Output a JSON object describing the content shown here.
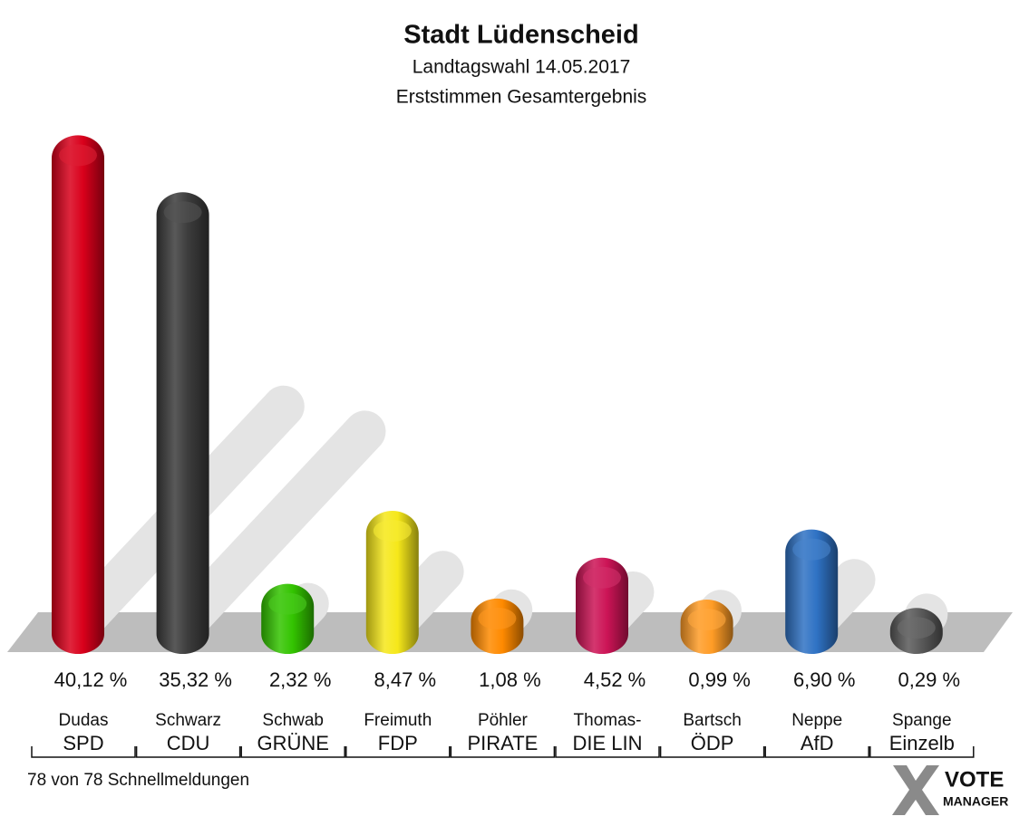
{
  "chart_data": {
    "type": "bar",
    "title": "Stadt Lüdenscheid",
    "subtitle": [
      "Landtagswahl 14.05.2017",
      "Erststimmen Gesamtergebnis"
    ],
    "candidates": [
      "Dudas",
      "Schwarz",
      "Schwab",
      "Freimuth",
      "Pöhler",
      "Thomas-",
      "Bartsch",
      "Neppe",
      "Spange"
    ],
    "categories": [
      "SPD",
      "CDU",
      "GRÜNE",
      "FDP",
      "PIRATE",
      "DIE LIN",
      "ÖDP",
      "AfD",
      "Einzelb"
    ],
    "values": [
      40.12,
      35.32,
      2.32,
      8.47,
      1.08,
      4.52,
      0.99,
      6.9,
      0.29
    ],
    "value_labels": [
      "40,12 %",
      "35,32 %",
      "2,32 %",
      "8,47 %",
      "1,08 %",
      "4,52 %",
      "0,99 %",
      "6,90 %",
      "0,29 %"
    ],
    "colors": [
      "#d9001b",
      "#3c3c3c",
      "#33c400",
      "#f6e81a",
      "#ff8a00",
      "#cc1456",
      "#ff9c26",
      "#2f72c4",
      "#595959"
    ]
  },
  "footer": "78 von 78 Schnellmeldungen",
  "logo": [
    "VOTE",
    "MANAGER"
  ]
}
